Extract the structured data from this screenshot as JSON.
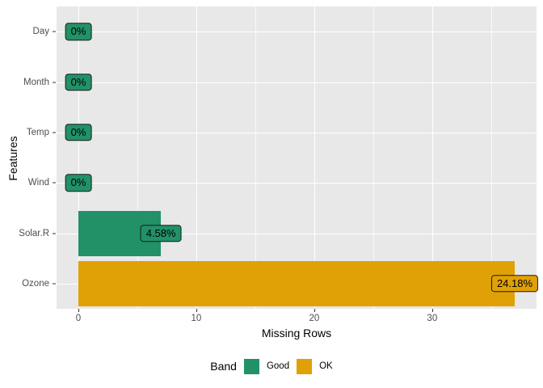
{
  "chart_data": {
    "type": "bar",
    "orientation": "horizontal",
    "xlabel": "Missing Rows",
    "ylabel": "Features",
    "xlim": [
      -1.85,
      38.85
    ],
    "x_major_ticks": [
      0,
      10,
      20,
      30
    ],
    "x_minor_gridlines": [
      5,
      15,
      25,
      35
    ],
    "grid": true,
    "rows": [
      {
        "feature": "Day",
        "missing_rows": 0,
        "pct_label": "0%",
        "band": "Good"
      },
      {
        "feature": "Month",
        "missing_rows": 0,
        "pct_label": "0%",
        "band": "Good"
      },
      {
        "feature": "Temp",
        "missing_rows": 0,
        "pct_label": "0%",
        "band": "Good"
      },
      {
        "feature": "Wind",
        "missing_rows": 0,
        "pct_label": "0%",
        "band": "Good"
      },
      {
        "feature": "Solar.R",
        "missing_rows": 7,
        "pct_label": "4.58%",
        "band": "Good"
      },
      {
        "feature": "Ozone",
        "missing_rows": 37,
        "pct_label": "24.18%",
        "band": "OK"
      }
    ],
    "legend": {
      "title": "Band",
      "position": "bottom",
      "entries": [
        {
          "label": "Good",
          "color": "#229168"
        },
        {
          "label": "OK",
          "color": "#E0A107"
        }
      ]
    },
    "style": {
      "panel_background": "#E8E8E8",
      "gridline_color": "#FFFFFF",
      "axis_text_color": "#4D4D4D",
      "label_border_color": "#1A1A1A"
    }
  }
}
